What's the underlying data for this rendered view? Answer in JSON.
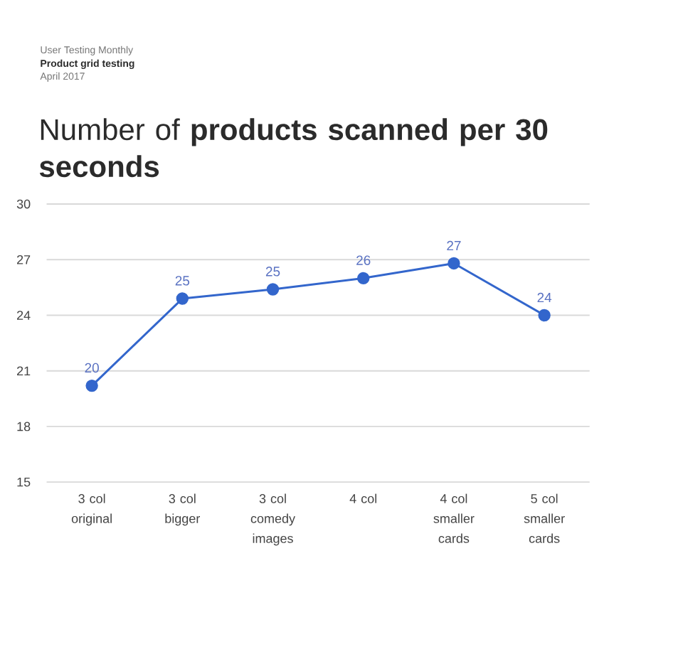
{
  "chart_data": {
    "type": "line",
    "title": "Number of **products scanned per 30 seconds**",
    "annotations": [
      "User Testing Monthly",
      "Product grid testing",
      "April 2017"
    ],
    "categories": [
      "3 col original",
      "3 col bigger",
      "3 col comedy images",
      "4 col",
      "4 col smaller cards",
      "5 col smaller cards"
    ],
    "values": [
      20.2,
      24.9,
      25.4,
      26.0,
      26.8,
      24.0
    ],
    "value_labels": [
      "20",
      "25",
      "25",
      "26",
      "27",
      "24"
    ],
    "color": "#3366cc",
    "ylim": [
      15,
      30
    ],
    "yticks": [
      15,
      18,
      21,
      24,
      27,
      30
    ],
    "grid": "y",
    "legend": false,
    "marker": "circle",
    "line_style": "solid"
  }
}
